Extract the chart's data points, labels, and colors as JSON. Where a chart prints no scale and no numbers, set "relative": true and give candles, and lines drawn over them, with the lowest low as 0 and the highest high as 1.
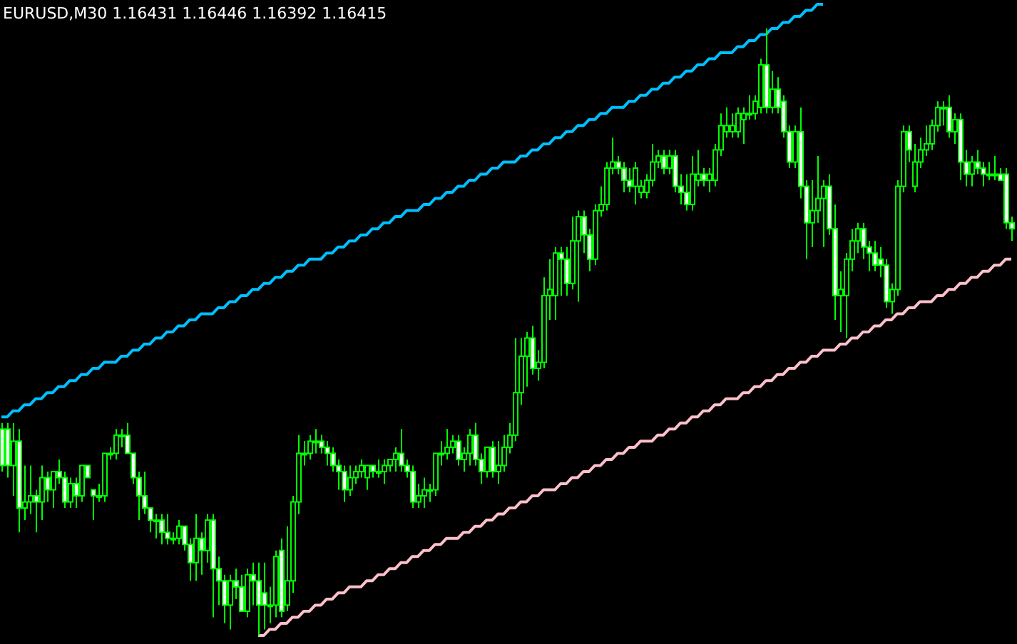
{
  "chart_data": {
    "type": "candlestick",
    "title": "EURUSD,M30 1.16431 1.16446 1.16392 1.16415",
    "relative": true,
    "categories": [
      null,
      null,
      null,
      null,
      null,
      null,
      null,
      null,
      null,
      null,
      null,
      null,
      null,
      null,
      null,
      null,
      null,
      null,
      null,
      null,
      null,
      null,
      null,
      null,
      null,
      null,
      null,
      null,
      null,
      null,
      null,
      null,
      null,
      null,
      null,
      null,
      null,
      null,
      null,
      null,
      null,
      null,
      null,
      null,
      null,
      null,
      null,
      null,
      null,
      null,
      null,
      null,
      null,
      null,
      null,
      null,
      null,
      null,
      null,
      null,
      null,
      null,
      null,
      null,
      null,
      null,
      null,
      null,
      null,
      null,
      null,
      null,
      null,
      null,
      null,
      null,
      null,
      null,
      null,
      null,
      null,
      null,
      null,
      null,
      null,
      null,
      null,
      null,
      null,
      null,
      null,
      null,
      null,
      null,
      null,
      null,
      null,
      null,
      null,
      null,
      null,
      null,
      null,
      null,
      null,
      null,
      null,
      null,
      null,
      null,
      null,
      null,
      null,
      null,
      null,
      null,
      null,
      null,
      null,
      null,
      null,
      null,
      null,
      null,
      null,
      null,
      null,
      null,
      null,
      null,
      null,
      null,
      null,
      null,
      null,
      null,
      null,
      null,
      null,
      null,
      null,
      null,
      null,
      null,
      null,
      null,
      null,
      null,
      null,
      null,
      null,
      null,
      null,
      null,
      null,
      null,
      null,
      null,
      null,
      null,
      null,
      null,
      null,
      null,
      null,
      null,
      null,
      null,
      null,
      null,
      null,
      null,
      null,
      null,
      null,
      null,
      null,
      null
    ],
    "series": [
      {
        "color": "#00ff00",
        "ohlc": [
          [
            0.34,
            0.35,
            0.27,
            0.28
          ],
          [
            0.34,
            0.35,
            0.26,
            0.28
          ],
          [
            0.28,
            0.35,
            0.23,
            0.32
          ],
          [
            0.32,
            0.34,
            0.17,
            0.21
          ],
          [
            0.21,
            0.28,
            0.19,
            0.22
          ],
          [
            0.22,
            0.28,
            0.2,
            0.23
          ],
          [
            0.23,
            0.24,
            0.17,
            0.22
          ],
          [
            0.22,
            0.28,
            0.19,
            0.26
          ],
          [
            0.26,
            0.27,
            0.22,
            0.24
          ],
          [
            0.24,
            0.27,
            0.21,
            0.27
          ],
          [
            0.27,
            0.29,
            0.25,
            0.26
          ],
          [
            0.26,
            0.27,
            0.21,
            0.22
          ],
          [
            0.22,
            0.26,
            0.21,
            0.25
          ],
          [
            0.25,
            0.26,
            0.21,
            0.23
          ],
          [
            0.23,
            0.28,
            0.22,
            0.28
          ],
          [
            0.28,
            0.28,
            0.26,
            0.26
          ],
          [
            0.24,
            0.24,
            0.19,
            0.23
          ],
          [
            0.23,
            0.25,
            0.22,
            0.23
          ],
          [
            0.23,
            0.3,
            0.22,
            0.3
          ],
          [
            0.3,
            0.31,
            0.29,
            0.3
          ],
          [
            0.3,
            0.34,
            0.29,
            0.33
          ],
          [
            0.33,
            0.34,
            0.31,
            0.33
          ],
          [
            0.33,
            0.35,
            0.3,
            0.3
          ],
          [
            0.3,
            0.3,
            0.25,
            0.26
          ],
          [
            0.26,
            0.27,
            0.19,
            0.23
          ],
          [
            0.23,
            0.27,
            0.2,
            0.21
          ],
          [
            0.21,
            0.21,
            0.17,
            0.19
          ],
          [
            0.19,
            0.2,
            0.16,
            0.19
          ],
          [
            0.19,
            0.2,
            0.15,
            0.17
          ],
          [
            0.17,
            0.2,
            0.15,
            0.16
          ],
          [
            0.16,
            0.17,
            0.15,
            0.16
          ],
          [
            0.16,
            0.19,
            0.15,
            0.18
          ],
          [
            0.18,
            0.18,
            0.14,
            0.15
          ],
          [
            0.15,
            0.16,
            0.09,
            0.12
          ],
          [
            0.12,
            0.2,
            0.09,
            0.16
          ],
          [
            0.16,
            0.17,
            0.1,
            0.14
          ],
          [
            0.14,
            0.2,
            0.12,
            0.19
          ],
          [
            0.19,
            0.2,
            0.03,
            0.11
          ],
          [
            0.11,
            0.13,
            0.05,
            0.09
          ],
          [
            0.09,
            0.1,
            0.02,
            0.05
          ],
          [
            0.05,
            0.1,
            0.01,
            0.09
          ],
          [
            0.09,
            0.11,
            0.06,
            0.08
          ],
          [
            0.08,
            0.1,
            0.04,
            0.04
          ],
          [
            0.04,
            0.11,
            0.03,
            0.1
          ],
          [
            0.1,
            0.12,
            0.05,
            0.09
          ],
          [
            0.09,
            0.12,
            0,
            0.05
          ],
          [
            0.07,
            0.12,
            0.01,
            0.05
          ],
          [
            0.05,
            0.08,
            0.02,
            0.05
          ],
          [
            0.05,
            0.14,
            0.03,
            0.13
          ],
          [
            0.14,
            0.16,
            0.03,
            0.04
          ],
          [
            0.05,
            0.18,
            0.04,
            0.09
          ],
          [
            0.09,
            0.23,
            0.07,
            0.22
          ],
          [
            0.22,
            0.33,
            0.2,
            0.3
          ],
          [
            0.3,
            0.32,
            0.28,
            0.3
          ],
          [
            0.3,
            0.33,
            0.29,
            0.32
          ],
          [
            0.32,
            0.34,
            0.3,
            0.32
          ],
          [
            0.32,
            0.33,
            0.3,
            0.31
          ],
          [
            0.31,
            0.32,
            0.28,
            0.3
          ],
          [
            0.3,
            0.31,
            0.27,
            0.28
          ],
          [
            0.28,
            0.29,
            0.24,
            0.27
          ],
          [
            0.27,
            0.28,
            0.22,
            0.24
          ],
          [
            0.24,
            0.28,
            0.23,
            0.26
          ],
          [
            0.26,
            0.28,
            0.25,
            0.27
          ],
          [
            0.27,
            0.29,
            0.26,
            0.28
          ],
          [
            0.26,
            0.28,
            0.24,
            0.28
          ],
          [
            0.28,
            0.28,
            0.26,
            0.27
          ],
          [
            0.27,
            0.29,
            0.26,
            0.27
          ],
          [
            0.27,
            0.29,
            0.25,
            0.28
          ],
          [
            0.28,
            0.29,
            0.27,
            0.29
          ],
          [
            0.29,
            0.31,
            0.27,
            0.3
          ],
          [
            0.3,
            0.34,
            0.27,
            0.28
          ],
          [
            0.28,
            0.29,
            0.26,
            0.27
          ],
          [
            0.27,
            0.28,
            0.21,
            0.22
          ],
          [
            0.22,
            0.25,
            0.21,
            0.23
          ],
          [
            0.23,
            0.26,
            0.21,
            0.24
          ],
          [
            0.24,
            0.25,
            0.22,
            0.24
          ],
          [
            0.24,
            0.3,
            0.23,
            0.3
          ],
          [
            0.3,
            0.32,
            0.28,
            0.3
          ],
          [
            0.3,
            0.34,
            0.29,
            0.31
          ],
          [
            0.31,
            0.33,
            0.3,
            0.32
          ],
          [
            0.32,
            0.33,
            0.28,
            0.29
          ],
          [
            0.29,
            0.31,
            0.27,
            0.3
          ],
          [
            0.3,
            0.34,
            0.28,
            0.33
          ],
          [
            0.33,
            0.35,
            0.28,
            0.29
          ],
          [
            0.29,
            0.3,
            0.25,
            0.27
          ],
          [
            0.27,
            0.31,
            0.26,
            0.31
          ],
          [
            0.31,
            0.32,
            0.26,
            0.27
          ],
          [
            0.27,
            0.32,
            0.25,
            0.28
          ],
          [
            0.28,
            0.33,
            0.27,
            0.31
          ],
          [
            0.31,
            0.35,
            0.3,
            0.33
          ],
          [
            0.33,
            0.49,
            0.32,
            0.4
          ],
          [
            0.4,
            0.49,
            0.38,
            0.46
          ],
          [
            0.46,
            0.5,
            0.41,
            0.49
          ],
          [
            0.49,
            0.51,
            0.43,
            0.44
          ],
          [
            0.44,
            0.47,
            0.42,
            0.45
          ],
          [
            0.45,
            0.59,
            0.44,
            0.56
          ],
          [
            0.56,
            0.62,
            0.52,
            0.57
          ],
          [
            0.56,
            0.64,
            0.52,
            0.63
          ],
          [
            0.63,
            0.64,
            0.56,
            0.62
          ],
          [
            0.62,
            0.64,
            0.56,
            0.58
          ],
          [
            0.58,
            0.69,
            0.57,
            0.65
          ],
          [
            0.65,
            0.7,
            0.55,
            0.69
          ],
          [
            0.69,
            0.7,
            0.63,
            0.66
          ],
          [
            0.66,
            0.67,
            0.6,
            0.62
          ],
          [
            0.62,
            0.71,
            0.61,
            0.7
          ],
          [
            0.7,
            0.74,
            0.69,
            0.71
          ],
          [
            0.71,
            0.78,
            0.7,
            0.77
          ],
          [
            0.77,
            0.82,
            0.76,
            0.78
          ],
          [
            0.78,
            0.79,
            0.76,
            0.77
          ],
          [
            0.77,
            0.78,
            0.73,
            0.75
          ],
          [
            0.75,
            0.77,
            0.73,
            0.74
          ],
          [
            0.74,
            0.78,
            0.71,
            0.77
          ],
          [
            0.73,
            0.75,
            0.72,
            0.74
          ],
          [
            0.73,
            0.76,
            0.72,
            0.75
          ],
          [
            0.75,
            0.81,
            0.74,
            0.78
          ],
          [
            0.78,
            0.8,
            0.77,
            0.79
          ],
          [
            0.79,
            0.8,
            0.76,
            0.77
          ],
          [
            0.77,
            0.8,
            0.76,
            0.79
          ],
          [
            0.79,
            0.8,
            0.73,
            0.74
          ],
          [
            0.74,
            0.76,
            0.71,
            0.73
          ],
          [
            0.73,
            0.76,
            0.7,
            0.71
          ],
          [
            0.71,
            0.79,
            0.7,
            0.76
          ],
          [
            0.75,
            0.8,
            0.74,
            0.76
          ],
          [
            0.76,
            0.77,
            0.74,
            0.75
          ],
          [
            0.75,
            0.77,
            0.73,
            0.76
          ],
          [
            0.75,
            0.81,
            0.74,
            0.8
          ],
          [
            0.8,
            0.86,
            0.79,
            0.84
          ],
          [
            0.83,
            0.87,
            0.82,
            0.84
          ],
          [
            0.83,
            0.86,
            0.82,
            0.84
          ],
          [
            0.83,
            0.87,
            0.82,
            0.86
          ],
          [
            0.85,
            0.87,
            0.81,
            0.86
          ],
          [
            0.86,
            0.89,
            0.85,
            0.86
          ],
          [
            0.86,
            0.89,
            0.85,
            0.88
          ],
          [
            0.87,
            0.95,
            0.86,
            0.94
          ],
          [
            0.94,
            1,
            0.86,
            0.87
          ],
          [
            0.87,
            0.93,
            0.86,
            0.9
          ],
          [
            0.9,
            0.92,
            0.86,
            0.87
          ],
          [
            0.88,
            0.89,
            0.82,
            0.83
          ],
          [
            0.83,
            0.84,
            0.77,
            0.78
          ],
          [
            0.78,
            0.84,
            0.77,
            0.83
          ],
          [
            0.83,
            0.87,
            0.72,
            0.74
          ],
          [
            0.74,
            0.75,
            0.62,
            0.68
          ],
          [
            0.68,
            0.75,
            0.64,
            0.7
          ],
          [
            0.7,
            0.79,
            0.68,
            0.72
          ],
          [
            0.72,
            0.75,
            0.64,
            0.74
          ],
          [
            0.74,
            0.76,
            0.66,
            0.67
          ],
          [
            0.67,
            0.71,
            0.52,
            0.56
          ],
          [
            0.56,
            0.6,
            0.5,
            0.57
          ],
          [
            0.56,
            0.63,
            0.49,
            0.62
          ],
          [
            0.62,
            0.67,
            0.6,
            0.65
          ],
          [
            0.65,
            0.68,
            0.63,
            0.67
          ],
          [
            0.67,
            0.68,
            0.62,
            0.64
          ],
          [
            0.64,
            0.65,
            0.6,
            0.63
          ],
          [
            0.63,
            0.65,
            0.6,
            0.61
          ],
          [
            0.62,
            0.64,
            0.59,
            0.61
          ],
          [
            0.61,
            0.62,
            0.54,
            0.55
          ],
          [
            0.55,
            0.58,
            0.53,
            0.57
          ],
          [
            0.57,
            0.75,
            0.56,
            0.74
          ],
          [
            0.74,
            0.84,
            0.73,
            0.83
          ],
          [
            0.83,
            0.84,
            0.78,
            0.8
          ],
          [
            0.74,
            0.81,
            0.73,
            0.78
          ],
          [
            0.78,
            0.82,
            0.77,
            0.8
          ],
          [
            0.8,
            0.84,
            0.79,
            0.81
          ],
          [
            0.81,
            0.85,
            0.8,
            0.84
          ],
          [
            0.84,
            0.88,
            0.83,
            0.87
          ],
          [
            0.87,
            0.88,
            0.84,
            0.87
          ],
          [
            0.87,
            0.89,
            0.82,
            0.83
          ],
          [
            0.83,
            0.86,
            0.81,
            0.85
          ],
          [
            0.85,
            0.86,
            0.75,
            0.78
          ],
          [
            0.78,
            0.8,
            0.74,
            0.76
          ],
          [
            0.76,
            0.79,
            0.74,
            0.78
          ],
          [
            0.78,
            0.8,
            0.76,
            0.77
          ],
          [
            0.77,
            0.78,
            0.74,
            0.76
          ],
          [
            0.76,
            0.78,
            0.75,
            0.76
          ],
          [
            0.76,
            0.79,
            0.75,
            0.76
          ],
          [
            0.76,
            0.77,
            0.75,
            0.75
          ],
          [
            0.76,
            0.77,
            0.67,
            0.68
          ],
          [
            0.68,
            0.69,
            0.65,
            0.67
          ]
        ]
      },
      {
        "type": "line",
        "color": "#00bfff",
        "values": [
          0.36,
          0.36,
          0.37,
          0.37,
          0.38,
          0.38,
          0.39,
          0.39,
          0.4,
          0.4,
          0.41,
          0.41,
          0.42,
          0.42,
          0.43,
          0.43,
          0.44,
          0.44,
          0.45,
          0.45,
          0.45,
          0.46,
          0.46,
          0.47,
          0.47,
          0.48,
          0.48,
          0.49,
          0.49,
          0.5,
          0.5,
          0.51,
          0.51,
          0.52,
          0.52,
          0.53,
          0.53,
          0.53,
          0.54,
          0.54,
          0.55,
          0.55,
          0.56,
          0.56,
          0.57,
          0.57,
          0.58,
          0.58,
          0.59,
          0.59,
          0.6,
          0.6,
          0.61,
          0.61,
          0.62,
          0.62,
          0.62,
          0.63,
          0.63,
          0.64,
          0.64,
          0.65,
          0.65,
          0.66,
          0.66,
          0.67,
          0.67,
          0.68,
          0.68,
          0.69,
          0.69,
          0.7,
          0.7,
          0.7,
          0.71,
          0.71,
          0.72,
          0.72,
          0.73,
          0.73,
          0.74,
          0.74,
          0.75,
          0.75,
          0.76,
          0.76,
          0.77,
          0.77,
          0.78,
          0.78,
          0.78,
          0.79,
          0.79,
          0.8,
          0.8,
          0.81,
          0.81,
          0.82,
          0.82,
          0.83,
          0.83,
          0.84,
          0.84,
          0.85,
          0.85,
          0.86,
          0.86,
          0.87,
          0.87,
          0.87,
          0.88,
          0.88,
          0.89,
          0.89,
          0.9,
          0.9,
          0.91,
          0.91,
          0.92,
          0.92,
          0.93,
          0.93,
          0.94,
          0.94,
          0.95,
          0.95,
          0.96,
          0.96,
          0.96,
          0.97,
          0.97,
          0.98,
          0.98,
          0.99,
          0.99,
          1,
          1,
          1.01,
          1.01,
          1.02,
          1.02,
          1.03,
          1.03,
          1.04,
          1.04,
          null,
          null,
          null,
          null,
          null,
          null,
          null,
          null,
          null,
          null,
          null,
          null,
          null,
          null,
          null,
          null,
          null,
          null,
          null,
          null,
          null,
          null,
          null,
          null,
          null,
          null,
          null,
          null,
          null,
          null,
          null,
          null,
          null
        ]
      },
      {
        "type": "line",
        "color": "#ffc0cb",
        "values": [
          null,
          null,
          null,
          null,
          null,
          null,
          null,
          null,
          null,
          null,
          null,
          null,
          null,
          null,
          null,
          null,
          null,
          null,
          null,
          null,
          null,
          null,
          null,
          null,
          null,
          null,
          null,
          null,
          null,
          null,
          null,
          null,
          null,
          null,
          null,
          null,
          null,
          null,
          null,
          null,
          null,
          null,
          null,
          null,
          null,
          0,
          0,
          0.01,
          0.01,
          0.02,
          0.02,
          0.03,
          0.03,
          0.04,
          0.04,
          0.05,
          0.05,
          0.06,
          0.06,
          0.07,
          0.07,
          0.08,
          0.08,
          0.08,
          0.09,
          0.09,
          0.1,
          0.1,
          0.11,
          0.11,
          0.12,
          0.12,
          0.13,
          0.13,
          0.14,
          0.14,
          0.15,
          0.15,
          0.16,
          0.16,
          0.16,
          0.17,
          0.17,
          0.18,
          0.18,
          0.19,
          0.19,
          0.2,
          0.2,
          0.21,
          0.21,
          0.22,
          0.22,
          0.23,
          0.23,
          0.24,
          0.24,
          0.24,
          0.25,
          0.25,
          0.26,
          0.26,
          0.27,
          0.27,
          0.28,
          0.28,
          0.29,
          0.29,
          0.3,
          0.3,
          0.31,
          0.31,
          0.32,
          0.32,
          0.32,
          0.33,
          0.33,
          0.34,
          0.34,
          0.35,
          0.35,
          0.36,
          0.36,
          0.37,
          0.37,
          0.38,
          0.38,
          0.39,
          0.39,
          0.39,
          0.4,
          0.4,
          0.41,
          0.41,
          0.42,
          0.42,
          0.43,
          0.43,
          0.44,
          0.44,
          0.45,
          0.45,
          0.46,
          0.46,
          0.47,
          0.47,
          0.47,
          0.48,
          0.48,
          0.49,
          0.49,
          0.5,
          0.5,
          0.51,
          0.51,
          0.52,
          0.52,
          0.53,
          0.53,
          0.54,
          0.54,
          0.55,
          0.55,
          0.55,
          0.56,
          0.56,
          0.57,
          0.57,
          0.58,
          0.58,
          0.59,
          0.59,
          0.6,
          0.6,
          0.61,
          0.61,
          0.62,
          0.62
        ]
      }
    ]
  }
}
